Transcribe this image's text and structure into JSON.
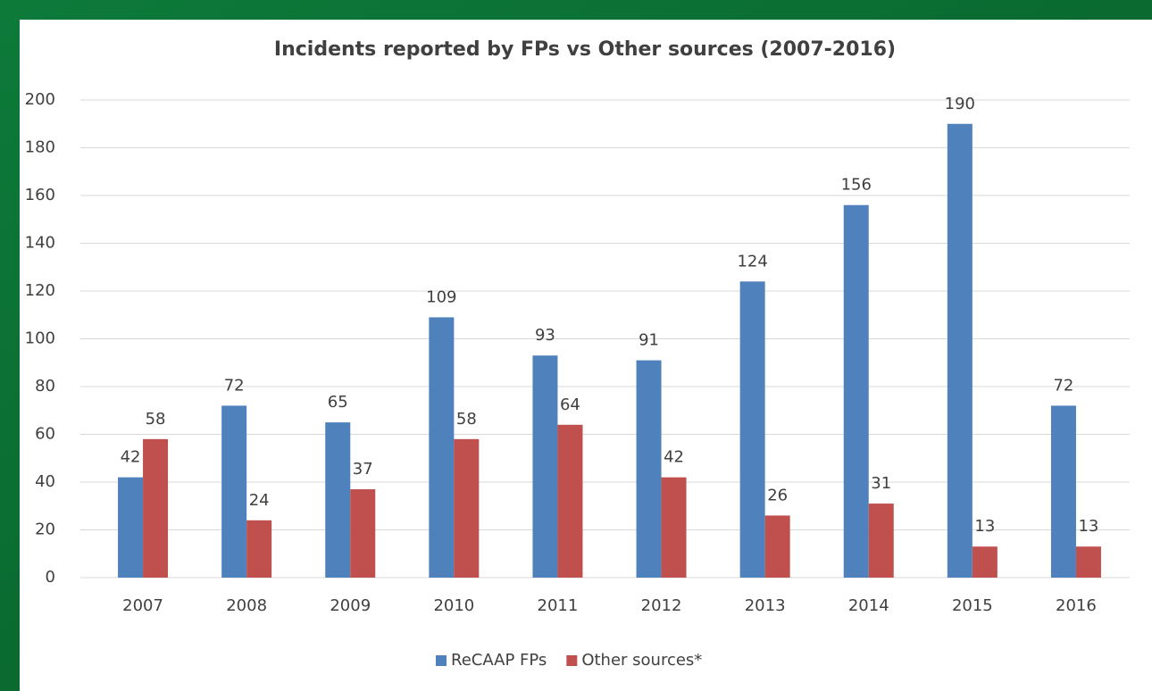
{
  "chart_data": {
    "type": "bar",
    "title": "Incidents reported by FPs vs Other sources (2007-2016)",
    "categories": [
      "2007",
      "2008",
      "2009",
      "2010",
      "2011",
      "2012",
      "2013",
      "2014",
      "2015",
      "2016"
    ],
    "series": [
      {
        "name": "ReCAAP FPs",
        "color": "#4f81bd",
        "values": [
          42,
          72,
          65,
          109,
          93,
          91,
          124,
          156,
          190,
          72
        ]
      },
      {
        "name": "Other sources*",
        "color": "#c0504d",
        "values": [
          58,
          24,
          37,
          58,
          64,
          42,
          26,
          31,
          13,
          13
        ]
      }
    ],
    "ylim": [
      0,
      200
    ],
    "yticks": [
      0,
      20,
      40,
      60,
      80,
      100,
      120,
      140,
      160,
      180,
      200
    ],
    "grid": true,
    "legend": "bottom",
    "data_labels": true
  }
}
